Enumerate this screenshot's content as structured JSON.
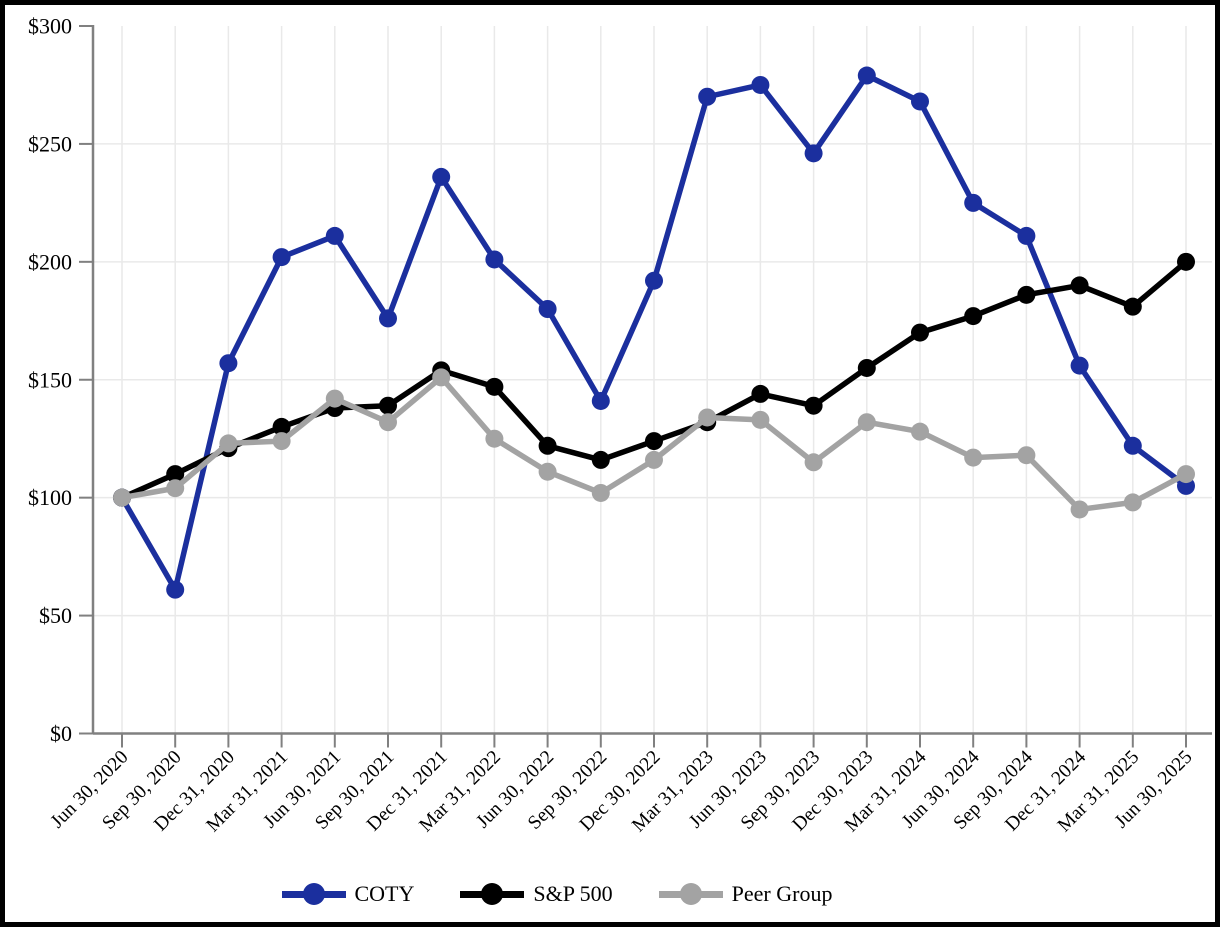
{
  "chart_data": {
    "type": "line",
    "title": "",
    "categories": [
      "Jun 30, 2020",
      "Sep 30, 2020",
      "Dec 31, 2020",
      "Mar 31, 2021",
      "Jun 30, 2021",
      "Sep 30, 2021",
      "Dec 31, 2021",
      "Mar 31, 2022",
      "Jun 30, 2022",
      "Sep 30, 2022",
      "Dec 30, 2022",
      "Mar 31, 2023",
      "Jun 30, 2023",
      "Sep 30, 2023",
      "Dec 30, 2023",
      "Mar 31, 2024",
      "Jun 30, 2024",
      "Sep 30, 2024",
      "Dec 31, 2024",
      "Mar 31, 2025",
      "Jun 30, 2025"
    ],
    "series": [
      {
        "name": "COTY",
        "color": "#1B2F9E",
        "values": [
          100,
          61,
          157,
          202,
          211,
          176,
          236,
          201,
          180,
          141,
          192,
          270,
          275,
          246,
          279,
          268,
          225,
          211,
          156,
          122,
          105
        ]
      },
      {
        "name": "S&P 500",
        "color": "#000000",
        "values": [
          100,
          110,
          121,
          130,
          138,
          139,
          154,
          147,
          122,
          116,
          124,
          132,
          144,
          139,
          155,
          170,
          177,
          186,
          190,
          181,
          200
        ]
      },
      {
        "name": "Peer Group",
        "color": "#A3A3A3",
        "values": [
          100,
          104,
          123,
          124,
          142,
          132,
          151,
          125,
          111,
          102,
          116,
          134,
          133,
          115,
          132,
          128,
          117,
          118,
          95,
          98,
          110
        ]
      }
    ],
    "y_axis": {
      "ticks": [
        "$0",
        "$50",
        "$100",
        "$150",
        "$200",
        "$250",
        "$300"
      ],
      "min": 0,
      "max": 300,
      "step": 50,
      "prefix": "$"
    },
    "x_axis": {
      "label_rotation_deg": -45
    },
    "legend_position": "bottom",
    "grid": true
  },
  "colors": {
    "gridline": "#E9E9E9",
    "axis": "#808080",
    "frame_border": "#000000",
    "background": "#FFFFFF"
  }
}
